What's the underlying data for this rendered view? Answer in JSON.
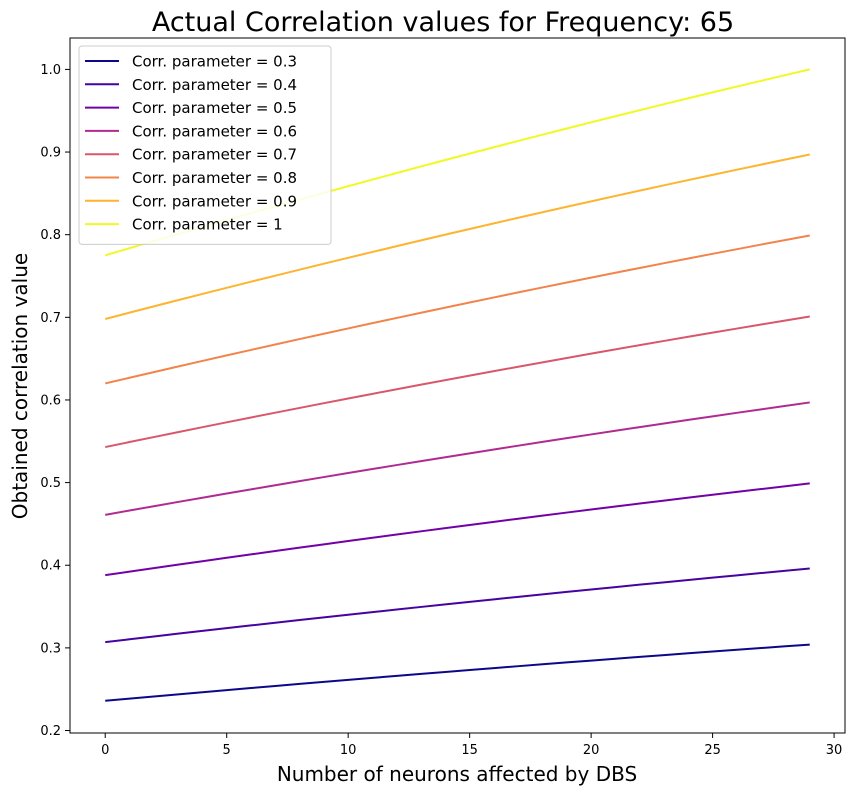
{
  "chart_data": {
    "type": "line",
    "title": "Actual Correlation values for Frequency:  65",
    "xlabel": "Number of neurons affected by DBS",
    "ylabel": "Obtained correlation value",
    "xlim": [
      -1.45,
      30.45
    ],
    "ylim": [
      0.197,
      1.038
    ],
    "xticks": [
      0,
      5,
      10,
      15,
      20,
      25,
      30
    ],
    "yticks": [
      0.2,
      0.3,
      0.4,
      0.5,
      0.6,
      0.7,
      0.8,
      0.9,
      1.0
    ],
    "xtick_labels": [
      "0",
      "5",
      "10",
      "15",
      "20",
      "25",
      "30"
    ],
    "ytick_labels": [
      "0.2",
      "0.3",
      "0.4",
      "0.5",
      "0.6",
      "0.7",
      "0.8",
      "0.9",
      "1.0"
    ],
    "grid": false,
    "legend_position": "top-left",
    "x": [
      0,
      1,
      2,
      3,
      4,
      5,
      6,
      7,
      8,
      9,
      10,
      11,
      12,
      13,
      14,
      15,
      16,
      17,
      18,
      19,
      20,
      21,
      22,
      23,
      24,
      25,
      26,
      27,
      28,
      29
    ],
    "series": [
      {
        "name": "Corr. parameter = 0.3",
        "color": "#0d0887",
        "start": 0.236,
        "end": 0.304
      },
      {
        "name": "Corr. parameter = 0.4",
        "color": "#46039f",
        "start": 0.307,
        "end": 0.396
      },
      {
        "name": "Corr. parameter = 0.5",
        "color": "#7201a8",
        "start": 0.388,
        "end": 0.499
      },
      {
        "name": "Corr. parameter = 0.6",
        "color": "#b12a90",
        "start": 0.461,
        "end": 0.597
      },
      {
        "name": "Corr. parameter = 0.7",
        "color": "#d8576b",
        "start": 0.543,
        "end": 0.701
      },
      {
        "name": "Corr. parameter = 0.8",
        "color": "#f2844b",
        "start": 0.62,
        "end": 0.799
      },
      {
        "name": "Corr. parameter = 0.9",
        "color": "#fdb42f",
        "start": 0.698,
        "end": 0.897
      },
      {
        "name": "Corr. parameter = 1",
        "color": "#f0f921",
        "start": 0.775,
        "end": 1.0
      }
    ]
  }
}
